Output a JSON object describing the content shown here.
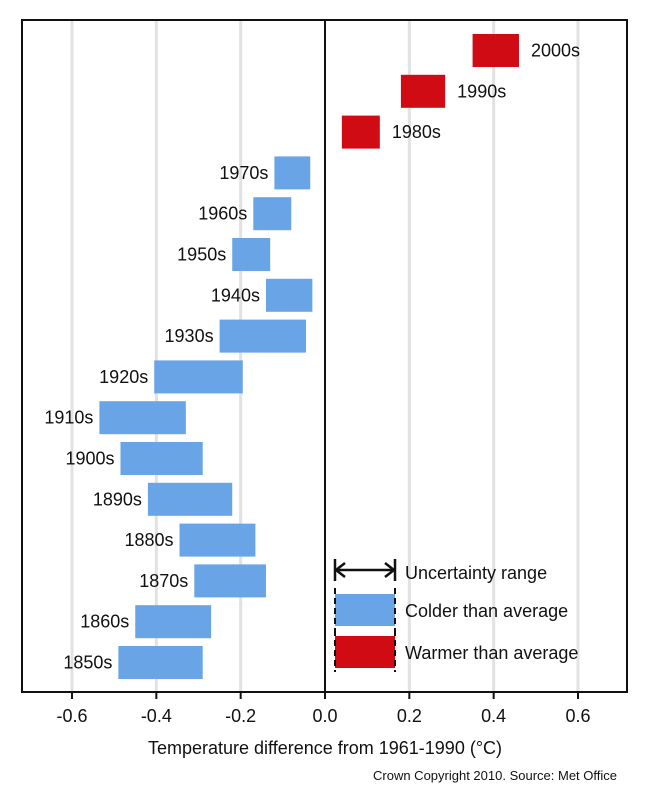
{
  "chart_data": {
    "type": "bar",
    "orientation": "horizontal-range",
    "xlabel": "Temperature difference from 1961-1990 (°C)",
    "xlim": [
      -0.71,
      0.72
    ],
    "xticks": [
      -0.6,
      -0.4,
      -0.2,
      0.0,
      0.2,
      0.4,
      0.6
    ],
    "xtick_labels": [
      "-0.6",
      "-0.4",
      "-0.2",
      "0.0",
      "0.2",
      "0.4",
      "0.6"
    ],
    "grid": "vertical",
    "decades": [
      {
        "label": "2000s",
        "low": 0.35,
        "high": 0.46,
        "class": "warmer"
      },
      {
        "label": "1990s",
        "low": 0.18,
        "high": 0.285,
        "class": "warmer"
      },
      {
        "label": "1980s",
        "low": 0.04,
        "high": 0.13,
        "class": "warmer"
      },
      {
        "label": "1970s",
        "low": -0.12,
        "high": -0.035,
        "class": "colder"
      },
      {
        "label": "1960s",
        "low": -0.17,
        "high": -0.08,
        "class": "colder"
      },
      {
        "label": "1950s",
        "low": -0.22,
        "high": -0.13,
        "class": "colder"
      },
      {
        "label": "1940s",
        "low": -0.14,
        "high": -0.03,
        "class": "colder"
      },
      {
        "label": "1930s",
        "low": -0.25,
        "high": -0.045,
        "class": "colder"
      },
      {
        "label": "1920s",
        "low": -0.405,
        "high": -0.195,
        "class": "colder"
      },
      {
        "label": "1910s",
        "low": -0.535,
        "high": -0.33,
        "class": "colder"
      },
      {
        "label": "1900s",
        "low": -0.485,
        "high": -0.29,
        "class": "colder"
      },
      {
        "label": "1890s",
        "low": -0.42,
        "high": -0.22,
        "class": "colder"
      },
      {
        "label": "1880s",
        "low": -0.345,
        "high": -0.165,
        "class": "colder"
      },
      {
        "label": "1870s",
        "low": -0.31,
        "high": -0.14,
        "class": "colder"
      },
      {
        "label": "1860s",
        "low": -0.45,
        "high": -0.27,
        "class": "colder"
      },
      {
        "label": "1850s",
        "low": -0.49,
        "high": -0.29,
        "class": "colder"
      }
    ],
    "legend": {
      "placement": "bottom-right",
      "items": [
        {
          "key": "uncertainty",
          "label": "Uncertainty range"
        },
        {
          "key": "colder",
          "label": "Colder than average"
        },
        {
          "key": "warmer",
          "label": "Warmer than average"
        }
      ]
    },
    "credit": "Crown Copyright 2010. Source: Met Office"
  },
  "colors": {
    "warmer": "#d10b14",
    "colder": "#69a4e6",
    "grid": "#e2e2e2",
    "axis": "#111111"
  }
}
